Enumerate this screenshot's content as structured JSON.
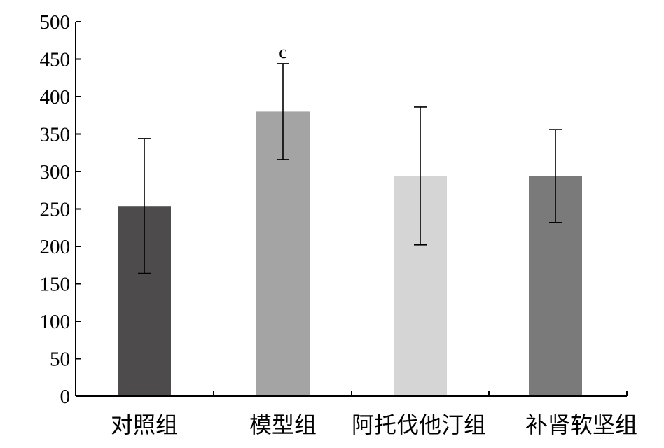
{
  "chart_data": {
    "type": "bar",
    "title": "",
    "xlabel": "",
    "ylabel": "",
    "ylim": [
      0,
      500
    ],
    "yticks": [
      0,
      50,
      100,
      150,
      200,
      250,
      300,
      350,
      400,
      450,
      500
    ],
    "ytick_labels": [
      "0",
      "50",
      "100",
      "150",
      "200",
      "250",
      "300",
      "350",
      "400",
      "450",
      "500"
    ],
    "categories": [
      "对照组",
      "模型组",
      "阿托伐他汀组",
      "补肾软坚组"
    ],
    "values": [
      254,
      380,
      294,
      294
    ],
    "error": [
      90,
      64,
      92,
      62
    ],
    "annotations": [
      "",
      "c",
      "",
      ""
    ],
    "colors": [
      "#4d4b4c",
      "#a4a4a4",
      "#d5d5d5",
      "#7a7a7a"
    ],
    "grid": false,
    "legend": "none"
  }
}
